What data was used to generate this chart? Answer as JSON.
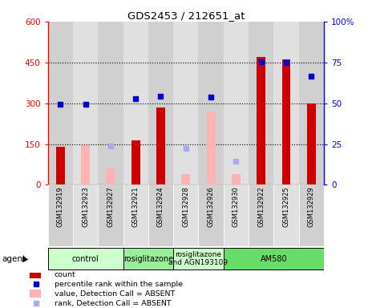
{
  "title": "GDS2453 / 212651_at",
  "samples": [
    "GSM132919",
    "GSM132923",
    "GSM132927",
    "GSM132921",
    "GSM132924",
    "GSM132928",
    "GSM132926",
    "GSM132930",
    "GSM132922",
    "GSM132925",
    "GSM132929"
  ],
  "count_values": [
    140,
    null,
    null,
    163,
    283,
    null,
    null,
    null,
    470,
    460,
    300
  ],
  "absent_bar_values": [
    null,
    145,
    60,
    null,
    null,
    40,
    270,
    40,
    null,
    null,
    null
  ],
  "percentile_rank": [
    295,
    295,
    null,
    317,
    325,
    null,
    323,
    null,
    452,
    448,
    400
  ],
  "absent_rank_values": [
    null,
    null,
    143,
    null,
    null,
    133,
    null,
    88,
    null,
    null,
    null
  ],
  "ylim": [
    0,
    600
  ],
  "yticks": [
    0,
    150,
    300,
    450,
    600
  ],
  "ytick_labels": [
    "0",
    "150",
    "300",
    "450",
    "600"
  ],
  "y2ticks": [
    0,
    25,
    50,
    75,
    100
  ],
  "y2tick_labels": [
    "0",
    "25",
    "50",
    "75",
    "100%"
  ],
  "groups": [
    {
      "label": "control",
      "start": 0,
      "end": 3,
      "color": "#ccffcc"
    },
    {
      "label": "rosiglitazone",
      "start": 3,
      "end": 5,
      "color": "#99ee99"
    },
    {
      "label": "rosiglitazone\nand AGN193109",
      "start": 5,
      "end": 7,
      "color": "#ccffcc"
    },
    {
      "label": "AM580",
      "start": 7,
      "end": 11,
      "color": "#66dd66"
    }
  ],
  "bar_width": 0.35,
  "count_color": "#cc0000",
  "absent_bar_color": "#ffb3b3",
  "rank_color": "#0000cc",
  "absent_rank_color": "#aaaaee",
  "col_bg_even": "#d0d0d0",
  "col_bg_odd": "#e0e0e0",
  "legend_items": [
    {
      "label": "count",
      "color": "#cc0000",
      "type": "bar"
    },
    {
      "label": "percentile rank within the sample",
      "color": "#0000cc",
      "type": "square"
    },
    {
      "label": "value, Detection Call = ABSENT",
      "color": "#ffb3b3",
      "type": "bar"
    },
    {
      "label": "rank, Detection Call = ABSENT",
      "color": "#aaaaee",
      "type": "square"
    }
  ]
}
